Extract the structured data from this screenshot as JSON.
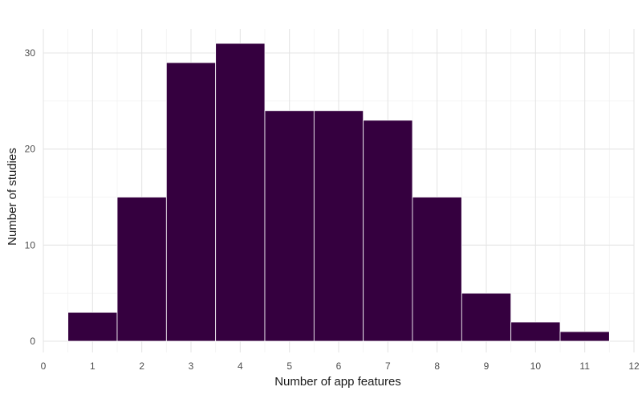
{
  "chart_data": {
    "type": "bar",
    "subtype": "histogram",
    "title": "",
    "xlabel": "Number of app features",
    "ylabel": "Number of studies",
    "categories": [
      1,
      2,
      3,
      4,
      5,
      6,
      7,
      8,
      9,
      10,
      11
    ],
    "values": [
      3,
      15,
      29,
      31,
      24,
      24,
      23,
      15,
      5,
      2,
      1
    ],
    "bin_width": 1,
    "xlim": [
      0,
      12
    ],
    "ylim": [
      0,
      32
    ],
    "x_ticks": [
      0,
      1,
      2,
      3,
      4,
      5,
      6,
      7,
      8,
      9,
      10,
      11,
      12
    ],
    "y_ticks": [
      0,
      10,
      20,
      30
    ],
    "grid": true,
    "bar_color": "#35003f",
    "bar_edge_color": "#ffffff"
  }
}
